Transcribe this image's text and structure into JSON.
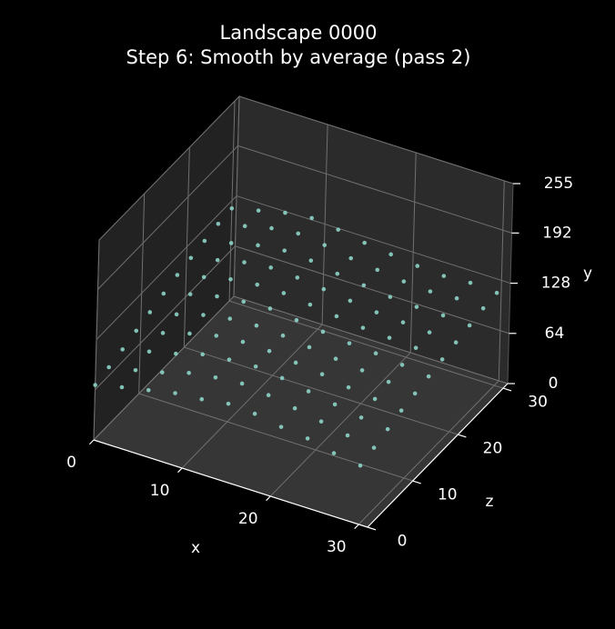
{
  "chart_data": {
    "type": "scatter3d",
    "title": "Landscape 0000",
    "subtitle": "Step 6: Smooth by average (pass 2)",
    "xlabel": "x",
    "zlabel": "z",
    "ylabel": "y",
    "xlim": [
      0,
      31
    ],
    "zlim": [
      0,
      31
    ],
    "ylim": [
      0,
      255
    ],
    "xticks": [
      0,
      10,
      20,
      30
    ],
    "zticks": [
      0,
      10,
      20,
      30
    ],
    "yticks": [
      0,
      64,
      128,
      192,
      255
    ],
    "color": "#8dd3c7",
    "grid": true,
    "x": [
      0,
      3,
      6,
      9,
      12,
      15,
      18,
      21,
      24,
      27,
      30
    ],
    "z": [
      0,
      3,
      6,
      9,
      12,
      15,
      18,
      21,
      24,
      27,
      30
    ],
    "values": [
      [
        70,
        78,
        85,
        92,
        95,
        100,
        98,
        92,
        88,
        80,
        75
      ],
      [
        75,
        82,
        90,
        100,
        105,
        108,
        104,
        98,
        92,
        85,
        80
      ],
      [
        80,
        88,
        96,
        106,
        110,
        112,
        108,
        102,
        96,
        90,
        86
      ],
      [
        86,
        94,
        104,
        112,
        115,
        114,
        110,
        106,
        100,
        96,
        92
      ],
      [
        92,
        100,
        110,
        116,
        118,
        116,
        112,
        108,
        104,
        100,
        96
      ],
      [
        98,
        108,
        116,
        120,
        122,
        118,
        114,
        110,
        108,
        104,
        100
      ],
      [
        104,
        112,
        120,
        124,
        124,
        120,
        116,
        112,
        110,
        108,
        104
      ],
      [
        108,
        116,
        124,
        128,
        126,
        122,
        118,
        114,
        112,
        110,
        108
      ],
      [
        112,
        120,
        128,
        132,
        130,
        124,
        120,
        116,
        114,
        114,
        112
      ],
      [
        116,
        124,
        132,
        136,
        132,
        126,
        122,
        118,
        116,
        118,
        116
      ],
      [
        118,
        126,
        134,
        138,
        134,
        128,
        124,
        120,
        118,
        120,
        118
      ]
    ]
  }
}
